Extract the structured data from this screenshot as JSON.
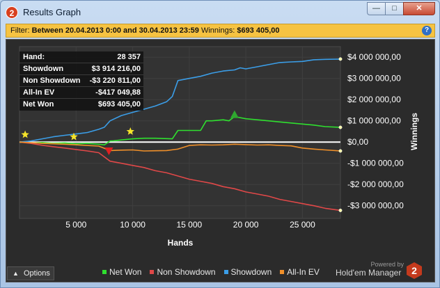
{
  "window": {
    "title": "Results Graph",
    "app_icon": "2",
    "buttons": {
      "minimize": "—",
      "maximize": "□",
      "close": "✕"
    }
  },
  "filter": {
    "prefix": "Filter:",
    "range": "Between 20.04.2013 0:00 and 30.04.2013 23:59",
    "winnings_label": "Winnings:",
    "winnings_value": "$693 405,00",
    "help": "?"
  },
  "stats": [
    {
      "label": "Hand:",
      "value": "28 357"
    },
    {
      "label": "Showdown",
      "value": "$3 914 216,00"
    },
    {
      "label": "Non Showdown",
      "value": "-$3 220 811,00"
    },
    {
      "label": "All-In EV",
      "value": "-$417 049,88"
    },
    {
      "label": "Net Won",
      "value": "$693 405,00"
    }
  ],
  "options": {
    "label": "Options",
    "icon": "chevron-up-icon"
  },
  "powered": {
    "text": "Powered by",
    "brand": "Hold'em Manager",
    "logo": "2"
  },
  "colors": {
    "net_won": "#2fe02f",
    "non_showdown": "#e04848",
    "showdown": "#3b9ee8",
    "all_in_ev": "#f0902a",
    "background": "#2b2b2b"
  },
  "chart_data": {
    "type": "line",
    "xlabel": "Hands",
    "ylabel": "Winnings",
    "xlim": [
      0,
      28357
    ],
    "ylim": [
      -3600000,
      4500000
    ],
    "x_ticks": [
      5000,
      10000,
      15000,
      20000,
      25000
    ],
    "x_tick_labels": [
      "5 000",
      "10 000",
      "15 000",
      "20 000",
      "25 000"
    ],
    "y_ticks": [
      4000000,
      3000000,
      2000000,
      1000000,
      0,
      -1000000,
      -2000000,
      -3000000
    ],
    "y_tick_labels": [
      "$4 000 000,00",
      "$3 000 000,00",
      "$2 000 000,00",
      "$1 000 000,00",
      "$0,00",
      "-$1 000 000,00",
      "-$2 000 000,00",
      "-$3 000 000,00"
    ],
    "grid": true,
    "legend_position": "bottom",
    "series": [
      {
        "name": "Net Won",
        "color": "#2fe02f",
        "x": [
          0,
          1000,
          2000,
          3000,
          4000,
          5000,
          6000,
          7000,
          7500,
          8000,
          8300,
          9000,
          10000,
          11000,
          12000,
          13500,
          14000,
          15000,
          16000,
          16500,
          17000,
          18000,
          18500,
          19000,
          20000,
          21000,
          22000,
          23000,
          24000,
          25000,
          26000,
          27000,
          28357
        ],
        "y": [
          0,
          -50000,
          -20000,
          -60000,
          -40000,
          -80000,
          -60000,
          -100000,
          -130000,
          50000,
          60000,
          100000,
          150000,
          180000,
          180000,
          150000,
          550000,
          550000,
          550000,
          1000000,
          1000000,
          1050000,
          1000000,
          1200000,
          1100000,
          1050000,
          1000000,
          950000,
          900000,
          850000,
          800000,
          730000,
          693405
        ]
      },
      {
        "name": "Non Showdown",
        "color": "#e04848",
        "x": [
          0,
          1000,
          2000,
          3000,
          4000,
          5000,
          6000,
          7000,
          8000,
          9000,
          10000,
          11000,
          12000,
          13000,
          14000,
          15000,
          16000,
          17000,
          18000,
          19000,
          20000,
          21000,
          22000,
          23000,
          24000,
          25000,
          26000,
          27000,
          28357
        ],
        "y": [
          0,
          -60000,
          -150000,
          -220000,
          -280000,
          -350000,
          -420000,
          -500000,
          -900000,
          -1000000,
          -1100000,
          -1200000,
          -1350000,
          -1450000,
          -1600000,
          -1750000,
          -1850000,
          -1950000,
          -2100000,
          -2200000,
          -2350000,
          -2450000,
          -2550000,
          -2700000,
          -2800000,
          -2900000,
          -3000000,
          -3120000,
          -3220811
        ]
      },
      {
        "name": "Showdown",
        "color": "#3b9ee8",
        "x": [
          0,
          1000,
          2000,
          3000,
          4000,
          5000,
          6000,
          7000,
          7500,
          8000,
          9000,
          10000,
          11000,
          12000,
          13000,
          13500,
          14000,
          15000,
          16000,
          17000,
          18000,
          19000,
          19500,
          20000,
          21000,
          22000,
          23000,
          24000,
          25000,
          26000,
          27000,
          28357
        ],
        "y": [
          0,
          50000,
          150000,
          250000,
          320000,
          380000,
          450000,
          600000,
          700000,
          1000000,
          1250000,
          1400000,
          1550000,
          1700000,
          1900000,
          2150000,
          2900000,
          3000000,
          3100000,
          3250000,
          3350000,
          3400000,
          3500000,
          3450000,
          3550000,
          3650000,
          3750000,
          3780000,
          3800000,
          3880000,
          3900000,
          3914216
        ]
      },
      {
        "name": "All-In EV",
        "color": "#f0902a",
        "x": [
          0,
          1000,
          2000,
          3000,
          4000,
          5000,
          6000,
          7000,
          8000,
          9000,
          10000,
          11000,
          12000,
          13000,
          14000,
          15000,
          16000,
          17000,
          18000,
          19000,
          20000,
          21000,
          22000,
          23000,
          24000,
          25000,
          26000,
          27000,
          28357
        ],
        "y": [
          0,
          -30000,
          -60000,
          -80000,
          -100000,
          -130000,
          -160000,
          -190000,
          -400000,
          -380000,
          -370000,
          -420000,
          -410000,
          -400000,
          -330000,
          -160000,
          -130000,
          -140000,
          -130000,
          -100000,
          -120000,
          -140000,
          -130000,
          -160000,
          -180000,
          -280000,
          -330000,
          -370000,
          -417050
        ]
      }
    ],
    "markers": [
      {
        "type": "star",
        "color": "#f5e42a",
        "x": 500,
        "y": 350000
      },
      {
        "type": "star",
        "color": "#f5e42a",
        "x": 4800,
        "y": 250000
      },
      {
        "type": "star",
        "color": "#f5e42a",
        "x": 9800,
        "y": 500000
      },
      {
        "type": "triangle-up",
        "color": "#2fa82f",
        "x": 19000,
        "y": 1300000
      },
      {
        "type": "triangle-down",
        "color": "#e02020",
        "x": 7900,
        "y": -420000
      }
    ]
  }
}
